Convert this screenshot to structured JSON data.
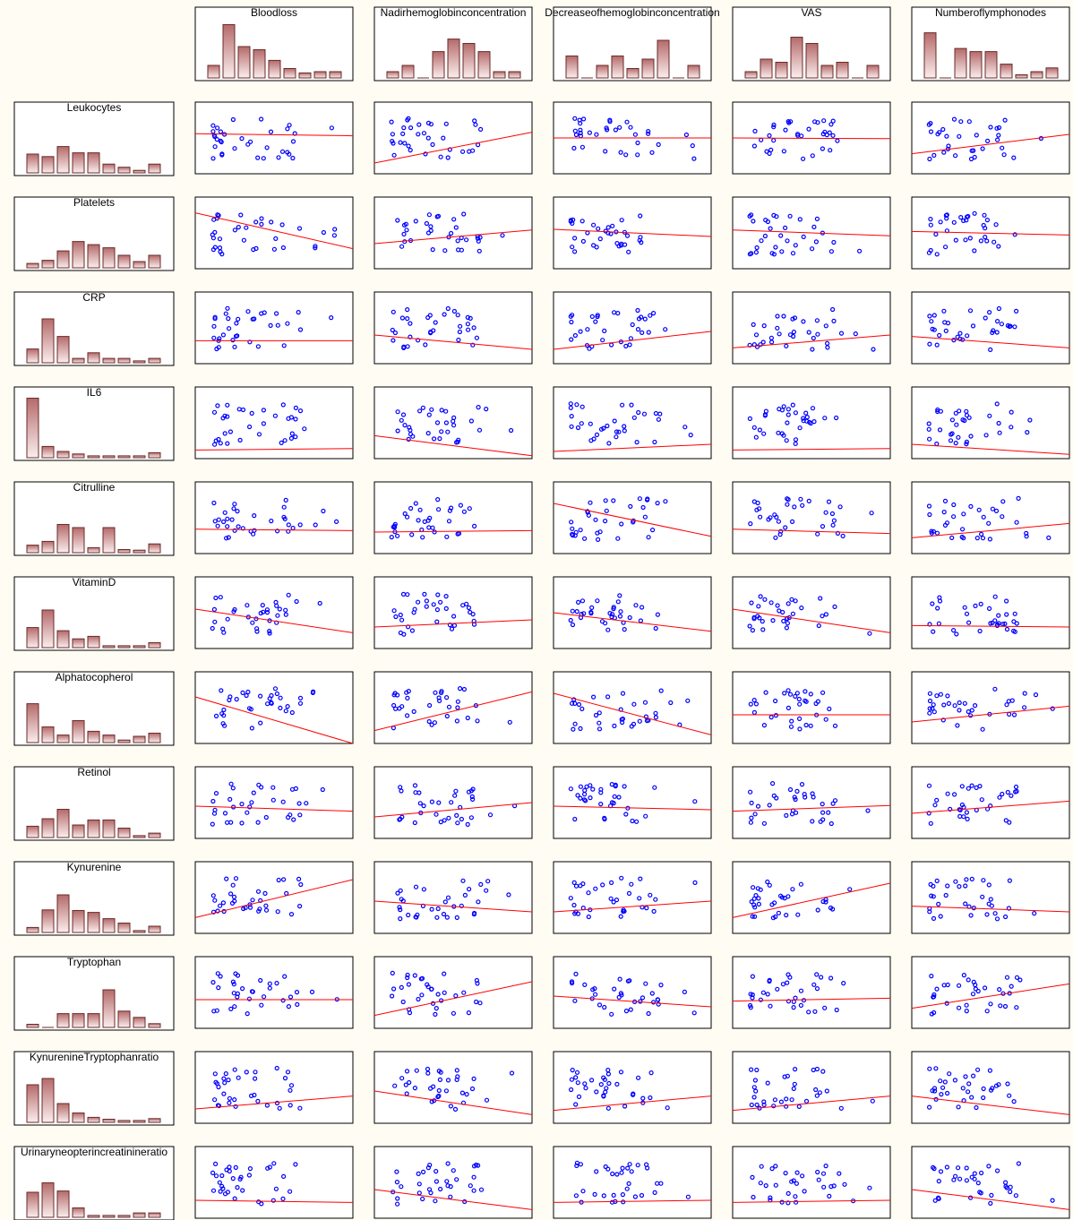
{
  "chart_data": {
    "type": "scatter",
    "column_variables": [
      "Bloodloss",
      "Nadirhemoglobinconcentration",
      "Decreaseofhemoglobinconcentration",
      "VAS",
      "Numberoflymphonodes"
    ],
    "row_variables": [
      "Leukocytes",
      "Platelets",
      "CRP",
      "IL6",
      "Citrulline",
      "VitaminD",
      "Alphatocopherol",
      "Retinol",
      "Kynurenine",
      "Tryptophan",
      "KynurenineTryptophanratio",
      "Urinaryneopterincreatinineratio"
    ],
    "column_histograms": [
      [
        0.2,
        0.85,
        0.5,
        0.45,
        0.28,
        0.15,
        0.08,
        0.1,
        0.1
      ],
      [
        0.1,
        0.2,
        0.0,
        0.42,
        0.62,
        0.55,
        0.42,
        0.1,
        0.1
      ],
      [
        0.35,
        0.0,
        0.2,
        0.35,
        0.15,
        0.3,
        0.6,
        0.0,
        0.2
      ],
      [
        0.1,
        0.3,
        0.25,
        0.65,
        0.55,
        0.2,
        0.25,
        0.0,
        0.2
      ],
      [
        0.72,
        0.0,
        0.47,
        0.42,
        0.42,
        0.22,
        0.05,
        0.1,
        0.16
      ]
    ],
    "row_histograms": [
      [
        0.3,
        0.26,
        0.42,
        0.32,
        0.32,
        0.14,
        0.09,
        0.04,
        0.14
      ],
      [
        0.07,
        0.12,
        0.27,
        0.42,
        0.37,
        0.32,
        0.2,
        0.1,
        0.2
      ],
      [
        0.22,
        0.7,
        0.42,
        0.07,
        0.16,
        0.07,
        0.07,
        0.03,
        0.07
      ],
      [
        0.95,
        0.18,
        0.1,
        0.06,
        0.03,
        0.03,
        0.03,
        0.03,
        0.08
      ],
      [
        0.12,
        0.18,
        0.45,
        0.4,
        0.08,
        0.4,
        0.05,
        0.04,
        0.14
      ],
      [
        0.32,
        0.6,
        0.27,
        0.14,
        0.18,
        0.03,
        0.03,
        0.03,
        0.08
      ],
      [
        0.62,
        0.25,
        0.12,
        0.35,
        0.18,
        0.12,
        0.04,
        0.1,
        0.15
      ],
      [
        0.18,
        0.3,
        0.45,
        0.2,
        0.28,
        0.28,
        0.15,
        0.03,
        0.07
      ],
      [
        0.08,
        0.36,
        0.6,
        0.35,
        0.32,
        0.22,
        0.15,
        0.03,
        0.1
      ],
      [
        0.05,
        0.0,
        0.22,
        0.22,
        0.22,
        0.6,
        0.26,
        0.16,
        0.06
      ],
      [
        0.6,
        0.7,
        0.3,
        0.15,
        0.08,
        0.05,
        0.03,
        0.03,
        0.06
      ],
      [
        0.4,
        0.55,
        0.42,
        0.15,
        0.03,
        0.03,
        0.03,
        0.07,
        0.07
      ]
    ],
    "regression_lines": [
      [
        [
          0.56,
          0.53
        ],
        [
          0.15,
          0.58
        ],
        [
          0.5,
          0.5
        ],
        [
          0.5,
          0.49
        ],
        [
          0.28,
          0.55
        ]
      ],
      [
        [
          0.78,
          0.28
        ],
        [
          0.35,
          0.54
        ],
        [
          0.55,
          0.45
        ],
        [
          0.54,
          0.46
        ],
        [
          0.52,
          0.47
        ]
      ],
      [
        [
          0.32,
          0.32
        ],
        [
          0.4,
          0.2
        ],
        [
          0.2,
          0.45
        ],
        [
          0.22,
          0.4
        ],
        [
          0.38,
          0.22
        ]
      ],
      [
        [
          0.12,
          0.14
        ],
        [
          0.32,
          0.04
        ],
        [
          0.1,
          0.2
        ],
        [
          0.12,
          0.14
        ],
        [
          0.2,
          0.06
        ]
      ],
      [
        [
          0.34,
          0.32
        ],
        [
          0.3,
          0.32
        ],
        [
          0.7,
          0.24
        ],
        [
          0.34,
          0.28
        ],
        [
          0.22,
          0.42
        ]
      ],
      [
        [
          0.55,
          0.22
        ],
        [
          0.3,
          0.4
        ],
        [
          0.5,
          0.24
        ],
        [
          0.55,
          0.22
        ],
        [
          0.32,
          0.3
        ]
      ],
      [
        [
          0.65,
          0.0
        ],
        [
          0.18,
          0.72
        ],
        [
          0.7,
          0.12
        ],
        [
          0.4,
          0.4
        ],
        [
          0.3,
          0.52
        ]
      ],
      [
        [
          0.45,
          0.38
        ],
        [
          0.3,
          0.5
        ],
        [
          0.45,
          0.4
        ],
        [
          0.38,
          0.46
        ],
        [
          0.35,
          0.52
        ]
      ],
      [
        [
          0.22,
          0.75
        ],
        [
          0.45,
          0.3
        ],
        [
          0.3,
          0.45
        ],
        [
          0.22,
          0.7
        ],
        [
          0.38,
          0.3
        ]
      ],
      [
        [
          0.4,
          0.4
        ],
        [
          0.18,
          0.65
        ],
        [
          0.45,
          0.3
        ],
        [
          0.38,
          0.42
        ],
        [
          0.28,
          0.62
        ]
      ],
      [
        [
          0.2,
          0.38
        ],
        [
          0.45,
          0.12
        ],
        [
          0.18,
          0.38
        ],
        [
          0.18,
          0.38
        ],
        [
          0.38,
          0.12
        ]
      ],
      [
        [
          0.25,
          0.22
        ],
        [
          0.4,
          0.12
        ],
        [
          0.22,
          0.25
        ],
        [
          0.22,
          0.25
        ],
        [
          0.4,
          0.12
        ]
      ]
    ]
  }
}
